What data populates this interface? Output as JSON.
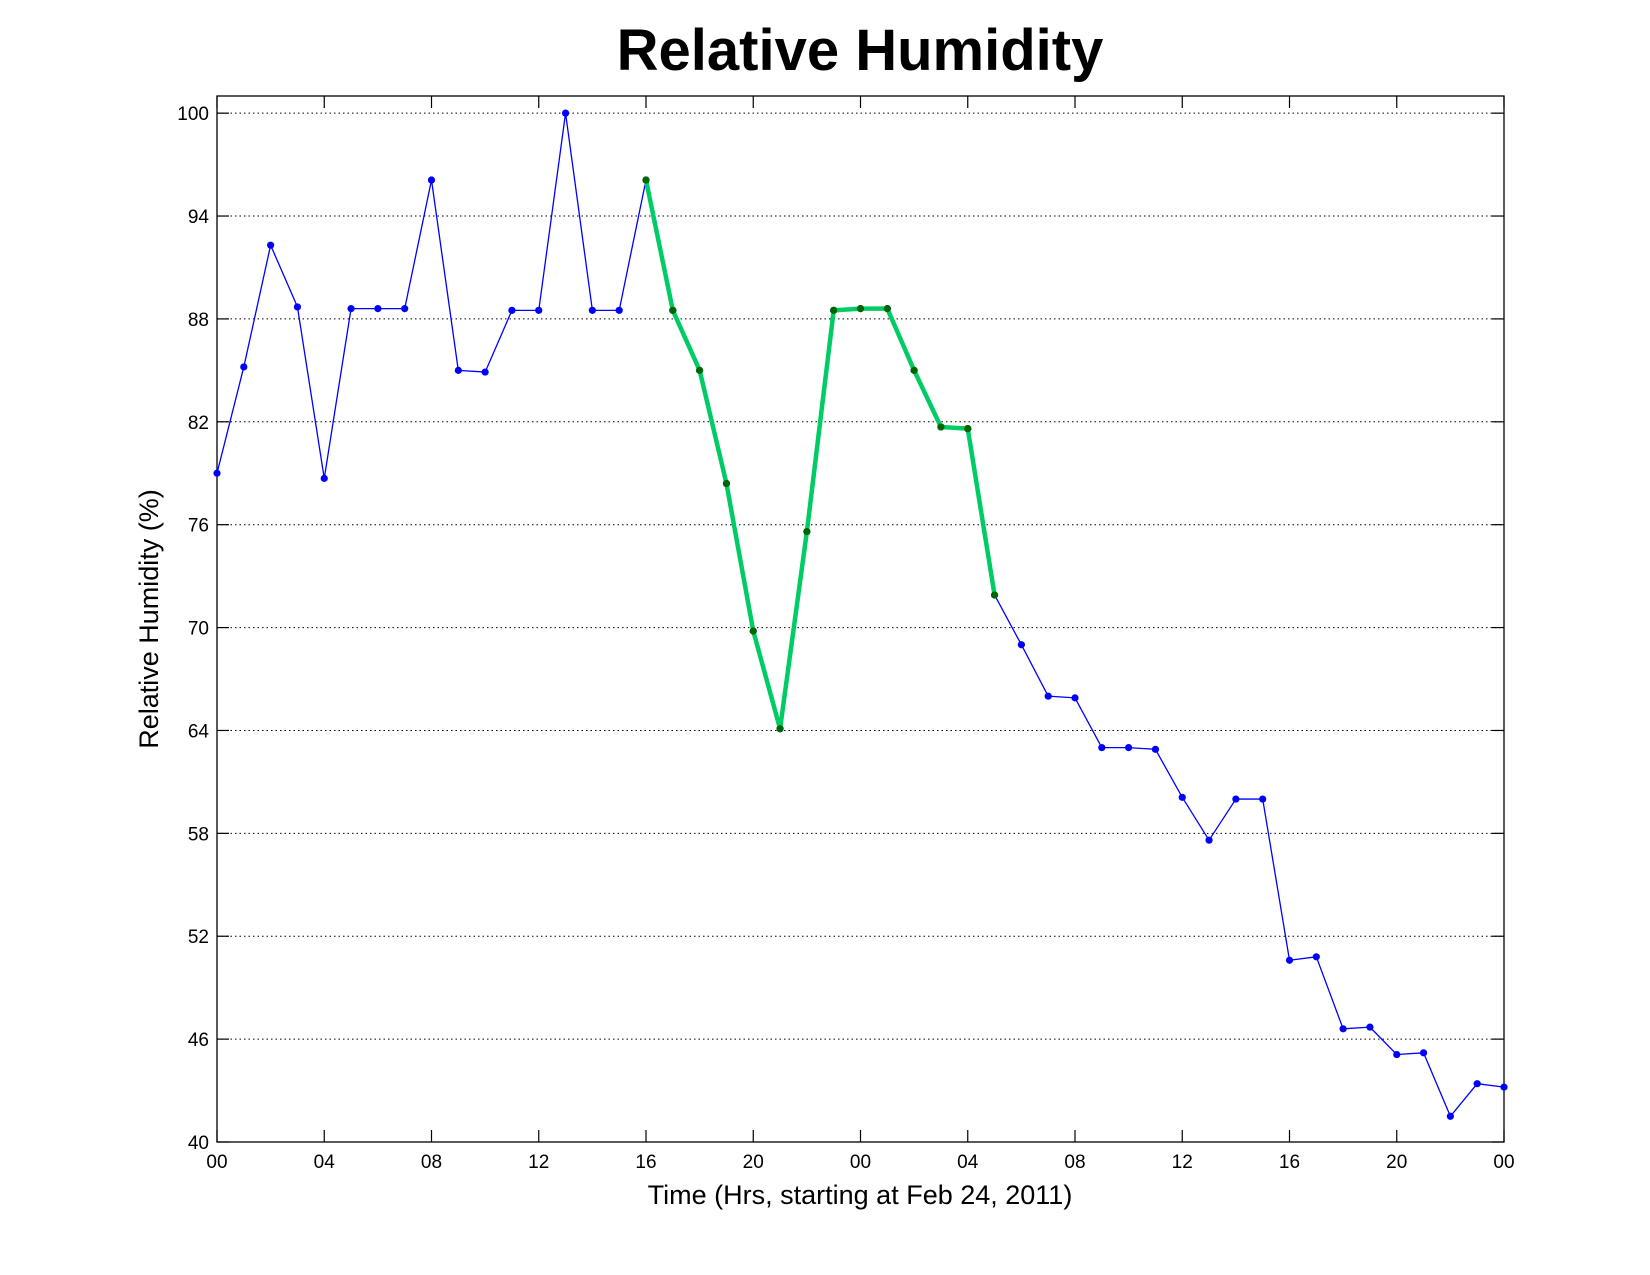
{
  "chart_data": {
    "type": "line",
    "title": "Relative Humidity",
    "xlabel": "Time (Hrs, starting at Feb 24, 2011)",
    "ylabel": "Relative Humidity (%)",
    "xlim": [
      0,
      48
    ],
    "ylim": [
      40,
      101
    ],
    "x_ticks": [
      {
        "value": 0,
        "label": "00"
      },
      {
        "value": 4,
        "label": "04"
      },
      {
        "value": 8,
        "label": "08"
      },
      {
        "value": 12,
        "label": "12"
      },
      {
        "value": 16,
        "label": "16"
      },
      {
        "value": 20,
        "label": "20"
      },
      {
        "value": 24,
        "label": "00"
      },
      {
        "value": 28,
        "label": "04"
      },
      {
        "value": 32,
        "label": "08"
      },
      {
        "value": 36,
        "label": "12"
      },
      {
        "value": 40,
        "label": "16"
      },
      {
        "value": 44,
        "label": "20"
      },
      {
        "value": 48,
        "label": "00"
      }
    ],
    "y_ticks": [
      {
        "value": 40,
        "label": "40"
      },
      {
        "value": 46,
        "label": "46"
      },
      {
        "value": 52,
        "label": "52"
      },
      {
        "value": 58,
        "label": "58"
      },
      {
        "value": 64,
        "label": "64"
      },
      {
        "value": 70,
        "label": "70"
      },
      {
        "value": 76,
        "label": "76"
      },
      {
        "value": 82,
        "label": "82"
      },
      {
        "value": 88,
        "label": "88"
      },
      {
        "value": 94,
        "label": "94"
      },
      {
        "value": 100,
        "label": "100"
      }
    ],
    "grid": "horizontal-dotted",
    "series": [
      {
        "color": "#0000ff",
        "x": [
          0,
          1,
          2,
          3,
          4,
          5,
          6,
          7,
          8,
          9,
          10,
          11,
          12,
          13,
          14,
          15,
          16,
          17,
          18,
          19,
          20,
          21,
          22,
          23,
          24,
          25,
          26,
          27,
          28,
          29,
          30,
          31,
          32,
          33,
          34,
          35,
          36,
          37,
          38,
          39,
          40,
          41,
          42,
          43,
          44,
          45,
          46,
          47,
          48
        ],
        "y": [
          79,
          85.2,
          92.3,
          88.7,
          78.7,
          88.6,
          88.6,
          88.6,
          96.1,
          85,
          84.9,
          88.5,
          88.5,
          100,
          88.5,
          88.5,
          96.1,
          88.5,
          85,
          78.4,
          69.8,
          64.1,
          75.6,
          88.5,
          88.6,
          88.6,
          85,
          81.7,
          81.6,
          71.9,
          69,
          66,
          65.9,
          63,
          63,
          62.9,
          60.1,
          57.6,
          60,
          60,
          50.6,
          50.8,
          46.6,
          46.7,
          45.1,
          45.2,
          41.5,
          43.4,
          43.2
        ]
      },
      {
        "color": "#00cc66",
        "marker_color": "#006600",
        "x": [
          16,
          17,
          18,
          19,
          20,
          21,
          22,
          23,
          24,
          25,
          26,
          27,
          28,
          29
        ],
        "y": [
          96.1,
          88.5,
          85,
          78.4,
          69.8,
          64.1,
          75.6,
          88.5,
          88.6,
          88.6,
          85,
          81.7,
          81.6,
          71.9
        ]
      }
    ]
  }
}
